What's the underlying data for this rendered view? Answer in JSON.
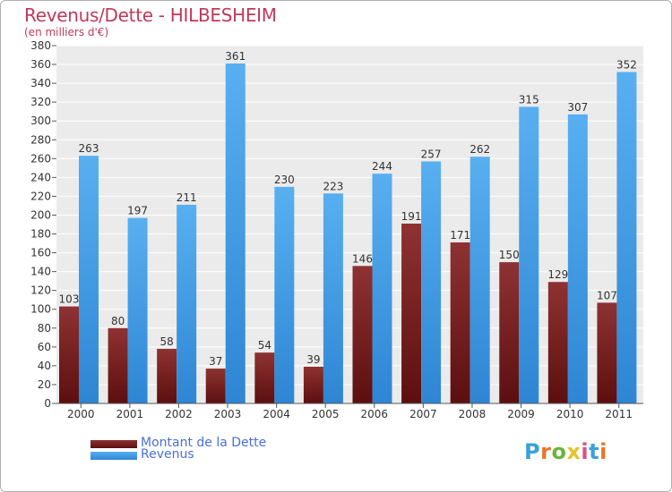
{
  "chart_data": {
    "type": "bar",
    "title": "Revenus/Dette - HILBESHEIM",
    "subtitle": "(en milliers d'€)",
    "categories": [
      "2000",
      "2001",
      "2002",
      "2003",
      "2004",
      "2005",
      "2006",
      "2007",
      "2008",
      "2009",
      "2010",
      "2011"
    ],
    "series": [
      {
        "name": "Montant de la Dette",
        "values": [
          103,
          80,
          58,
          37,
          54,
          39,
          146,
          191,
          171,
          150,
          129,
          107
        ],
        "color": "#7a1f1f"
      },
      {
        "name": "Revenus",
        "values": [
          263,
          197,
          211,
          361,
          230,
          223,
          244,
          257,
          262,
          315,
          307,
          352
        ],
        "color": "#3b95e0"
      }
    ],
    "ylim": [
      0,
      380
    ],
    "yticks": [
      0,
      20,
      40,
      60,
      80,
      100,
      120,
      140,
      160,
      180,
      200,
      220,
      240,
      260,
      280,
      300,
      320,
      340,
      360,
      380
    ],
    "grid": true,
    "legend_position": "bottom-left"
  },
  "colors": {
    "title": "#c0395b",
    "legend_text": "#4a70d8",
    "plot_background": "#ebebeb",
    "grid": "#ffffff"
  },
  "logo": {
    "letters": [
      "P",
      "r",
      "o",
      "x",
      "i",
      "t",
      "i"
    ],
    "colors": [
      "#3aa0dc",
      "#e8762b",
      "#6ab43e",
      "#e8c12b",
      "#d94f8a",
      "#3aa0dc",
      "#e8762b"
    ]
  }
}
